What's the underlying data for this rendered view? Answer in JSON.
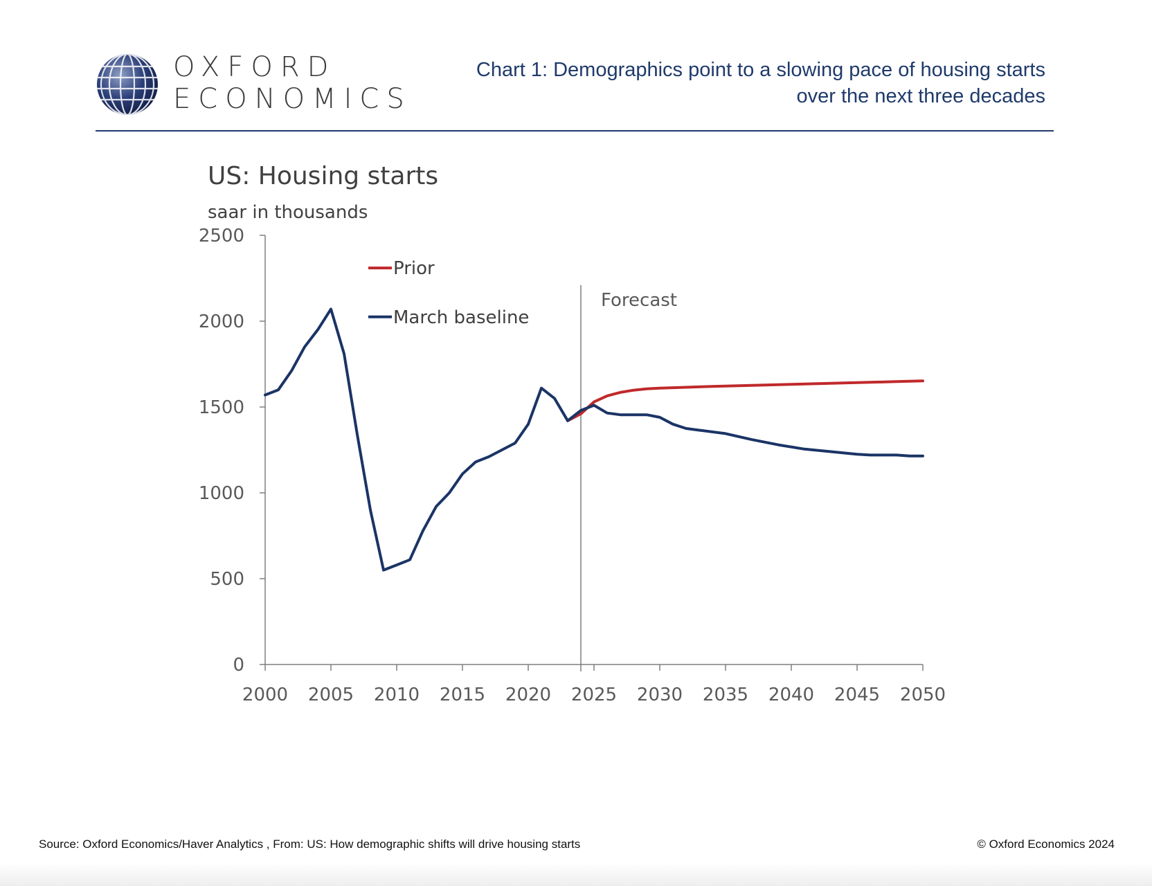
{
  "header": {
    "logo_line1": "OXFORD",
    "logo_line2": "ECONOMICS",
    "title_line1": "Chart 1: Demographics point to a slowing pace of housing starts",
    "title_line2": "over the next three decades"
  },
  "footer": {
    "source": "Source: Oxford Economics/Haver Analytics , From: US: How demographic shifts will drive housing starts",
    "copyright": "© Oxford Economics 2024"
  },
  "colors": {
    "brand_navy": "#1f3a6b",
    "series_prior": "#c0292b",
    "series_baseline": "#1b3466"
  },
  "chart_data": {
    "type": "line",
    "title": "US: Housing starts",
    "subtitle": "saar in thousands",
    "xlim": [
      2000,
      2050
    ],
    "ylim": [
      0,
      2500
    ],
    "x_ticks": [
      "2000",
      "2005",
      "2010",
      "2015",
      "2020",
      "2025",
      "2030",
      "2035",
      "2040",
      "2045",
      "2050"
    ],
    "y_ticks": [
      "0",
      "500",
      "1000",
      "1500",
      "2000",
      "2500"
    ],
    "legend_placement": "top-left",
    "annotation": {
      "text": "Forecast",
      "x": 2024
    },
    "series": [
      {
        "name": "Prior",
        "color": "#c0292b",
        "x": [
          2023,
          2024,
          2025,
          2026,
          2027,
          2028,
          2029,
          2030,
          2032,
          2034,
          2036,
          2038,
          2040,
          2042,
          2044,
          2046,
          2048,
          2050
        ],
        "y": [
          1420,
          1460,
          1530,
          1565,
          1585,
          1598,
          1606,
          1610,
          1615,
          1620,
          1624,
          1628,
          1632,
          1636,
          1640,
          1644,
          1648,
          1652
        ]
      },
      {
        "name": "March baseline",
        "color": "#1b3466",
        "x": [
          2000,
          2001,
          2002,
          2003,
          2004,
          2005,
          2006,
          2007,
          2008,
          2009,
          2010,
          2011,
          2012,
          2013,
          2014,
          2015,
          2016,
          2017,
          2018,
          2019,
          2020,
          2021,
          2022,
          2023,
          2024,
          2025,
          2026,
          2027,
          2028,
          2029,
          2030,
          2031,
          2032,
          2033,
          2035,
          2037,
          2039,
          2041,
          2043,
          2045,
          2046,
          2048,
          2049,
          2050
        ],
        "y": [
          1570,
          1600,
          1710,
          1850,
          1950,
          2070,
          1810,
          1340,
          900,
          550,
          580,
          610,
          780,
          920,
          1000,
          1110,
          1180,
          1210,
          1250,
          1290,
          1400,
          1610,
          1550,
          1420,
          1480,
          1510,
          1465,
          1455,
          1455,
          1455,
          1440,
          1400,
          1375,
          1365,
          1345,
          1310,
          1280,
          1255,
          1240,
          1225,
          1220,
          1220,
          1215,
          1215
        ]
      }
    ]
  }
}
